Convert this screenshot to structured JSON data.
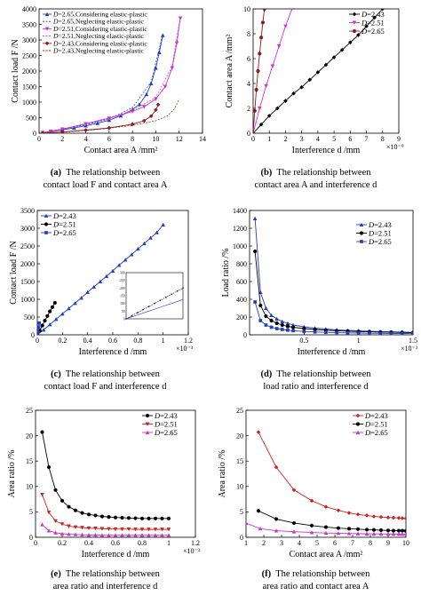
{
  "chart_data": [
    {
      "id": "a",
      "type": "line",
      "caption_tag": "(a)",
      "caption_line1": "The relationship between",
      "caption_line2": "contact load F and contact area A",
      "xlabel": "Contact area A /mm²",
      "ylabel": "Contact load F /N",
      "xlim": [
        0,
        14
      ],
      "ylim": [
        0,
        4000
      ],
      "xticks": [
        0,
        2,
        4,
        6,
        8,
        10,
        12,
        14
      ],
      "yticks": [
        0,
        500,
        1000,
        1500,
        2000,
        2500,
        3000,
        3500,
        4000
      ],
      "x_exponent": "",
      "grid": false,
      "legend_position": "top-left",
      "series": [
        {
          "name": "D=2.65,Considering elastic-plastic",
          "color": "#1f3fbf",
          "marker": "triangle-up",
          "x": [
            0.3,
            1.0,
            2.0,
            3.0,
            4.0,
            5.0,
            6.0,
            7.0,
            8.0,
            8.6,
            9.2,
            9.6,
            10.0,
            10.3,
            10.6
          ],
          "y": [
            15,
            50,
            110,
            170,
            240,
            320,
            420,
            560,
            760,
            930,
            1250,
            1600,
            2100,
            2600,
            3150
          ]
        },
        {
          "name": "D=2.65,Neglecting elastic-plastic",
          "color": "#1f3fbf",
          "marker": "none",
          "x": [
            0.3,
            2.0,
            4.0,
            6.0,
            8.0,
            9.6,
            10.6
          ],
          "y": [
            20,
            130,
            270,
            460,
            820,
            1650,
            3200
          ]
        },
        {
          "name": "D=2.51,Considering elastic-plastic",
          "color": "#cc33cc",
          "marker": "triangle-down",
          "x": [
            0.3,
            1.0,
            2.0,
            4.0,
            6.0,
            8.0,
            9.0,
            10.0,
            10.8,
            11.4,
            11.8,
            12.1
          ],
          "y": [
            20,
            60,
            130,
            300,
            480,
            700,
            850,
            1100,
            1500,
            2100,
            2900,
            3700
          ]
        },
        {
          "name": "D=2.51,Neglecting elastic-plastic",
          "color": "#cc33cc",
          "marker": "none",
          "x": [
            0.3,
            2.0,
            4.0,
            6.0,
            8.0,
            10.0,
            11.4,
            12.1
          ],
          "y": [
            25,
            140,
            310,
            500,
            730,
            1150,
            2150,
            3750
          ]
        },
        {
          "name": "D=2.43,Considering elastic-plastic",
          "color": "#8b1a1a",
          "marker": "diamond",
          "x": [
            0.3,
            2.0,
            4.0,
            6.0,
            8.0,
            9.0,
            9.6,
            10.0,
            10.2
          ],
          "y": [
            5,
            40,
            100,
            170,
            290,
            400,
            550,
            750,
            920
          ]
        },
        {
          "name": "D=2.43,Neglecting elastic-plastic",
          "color": "#8b1a1a",
          "marker": "none",
          "x": [
            2.0,
            5.0,
            8.0,
            10.0,
            11.0,
            11.6,
            12.0
          ],
          "y": [
            30,
            120,
            250,
            400,
            560,
            780,
            1100
          ]
        }
      ]
    },
    {
      "id": "b",
      "type": "line",
      "caption_tag": "(b)",
      "caption_line1": "The relationship between",
      "caption_line2": "contact area A and interference d",
      "xlabel": "Interference d /mm",
      "ylabel": "Contact area A /mm²",
      "xlim": [
        0,
        9
      ],
      "ylim": [
        0,
        10
      ],
      "xticks": [
        0,
        1,
        2,
        3,
        4,
        5,
        6,
        7,
        8,
        9
      ],
      "yticks": [
        0,
        2,
        4,
        6,
        8,
        10
      ],
      "x_exponent": "×10⁻⁹",
      "grid": false,
      "legend_position": "top-left",
      "series": [
        {
          "name": "D=2.43",
          "color": "#000000",
          "marker": "diamond",
          "x": [
            0,
            0.5,
            1,
            1.5,
            2,
            2.5,
            3,
            3.5,
            4,
            4.5,
            5,
            5.5,
            6,
            6.5,
            7,
            7.5,
            8
          ],
          "y": [
            0,
            0.7,
            1.4,
            2.0,
            2.6,
            3.2,
            3.7,
            4.3,
            4.9,
            5.5,
            6.1,
            6.7,
            7.3,
            7.9,
            8.6,
            9.3,
            10
          ]
        },
        {
          "name": "D=2.51",
          "color": "#cc33cc",
          "marker": "triangle-down",
          "x": [
            0,
            0.4,
            0.8,
            1.2,
            1.6,
            2.0,
            2.4
          ],
          "y": [
            0,
            2.0,
            3.8,
            5.4,
            7.0,
            8.6,
            10
          ]
        },
        {
          "name": "D=2.65",
          "color": "#8b1a1a",
          "marker": "circle",
          "x": [
            0,
            0.1,
            0.2,
            0.3,
            0.4,
            0.5,
            0.6,
            0.7
          ],
          "y": [
            0,
            1.8,
            3.5,
            5.0,
            6.4,
            7.7,
            8.9,
            10
          ]
        }
      ]
    },
    {
      "id": "c",
      "type": "line",
      "caption_tag": "(c)",
      "caption_line1": "The relationship between",
      "caption_line2": "contact load F and interference d",
      "xlabel": "Interference d /mm",
      "ylabel": "Contact load F /N",
      "xlim": [
        0,
        1.2
      ],
      "ylim": [
        0,
        3500
      ],
      "xticks": [
        0,
        0.2,
        0.4,
        0.6,
        0.8,
        1,
        1.2
      ],
      "yticks": [
        0,
        500,
        1000,
        1500,
        2000,
        2500,
        3000,
        3500
      ],
      "x_exponent": "×10⁻³",
      "grid": false,
      "legend_position": "top-left",
      "series": [
        {
          "name": "D=2.43",
          "color": "#1f3fbf",
          "marker": "triangle-up",
          "x": [
            0,
            0.05,
            0.1,
            0.15,
            0.2,
            0.25,
            0.3,
            0.35,
            0.4,
            0.45,
            0.5,
            0.55,
            0.6,
            0.65,
            0.7,
            0.75,
            0.8,
            0.85,
            0.9,
            0.95,
            1.0
          ],
          "y": [
            0,
            140,
            290,
            440,
            590,
            740,
            890,
            1040,
            1200,
            1350,
            1500,
            1650,
            1800,
            1960,
            2110,
            2260,
            2420,
            2570,
            2730,
            2880,
            3100
          ]
        },
        {
          "name": "D=2.51",
          "color": "#000000",
          "marker": "circle",
          "x": [
            0,
            0.02,
            0.04,
            0.06,
            0.08,
            0.1,
            0.12,
            0.14
          ],
          "y": [
            0,
            120,
            260,
            400,
            530,
            660,
            780,
            900
          ]
        },
        {
          "name": "D=2.65",
          "color": "#1f3fbf",
          "marker": "square",
          "x": [
            0,
            0.005,
            0.01,
            0.015
          ],
          "y": [
            0,
            100,
            220,
            330
          ]
        }
      ],
      "inset": {
        "xlim": [
          0,
          0.15
        ],
        "ylim": [
          0,
          300
        ],
        "yticks": [
          0,
          50,
          100,
          150,
          200,
          250,
          300
        ],
        "series": [
          {
            "name": "",
            "color": "#000000",
            "marker": "circle",
            "x": [
              0,
              0.015,
              0.03,
              0.045,
              0.06,
              0.075,
              0.09,
              0.105,
              0.12,
              0.135,
              0.15
            ],
            "y": [
              0,
              20,
              40,
              60,
              80,
              100,
              120,
              140,
              160,
              180,
              200
            ]
          },
          {
            "name": "",
            "color": "#1f3fbf",
            "marker": "none",
            "x": [
              0,
              0.03,
              0.06,
              0.09,
              0.12,
              0.15
            ],
            "y": [
              0,
              25,
              50,
              75,
              100,
              125
            ]
          }
        ]
      }
    },
    {
      "id": "d",
      "type": "line",
      "caption_tag": "(d)",
      "caption_line1": "The relationship between",
      "caption_line2": "load ratio and interference d",
      "xlabel": "Interference d /mm",
      "ylabel": "Load ratio /%",
      "xlim": [
        0,
        1.5
      ],
      "ylim": [
        0,
        1400
      ],
      "xticks": [
        0.5,
        1,
        1.5
      ],
      "yticks": [
        0,
        200,
        400,
        600,
        800,
        1000,
        1200,
        1400
      ],
      "x_exponent": "×10⁻³",
      "grid": false,
      "legend_position": "top-right",
      "series": [
        {
          "name": "D=2.43",
          "color": "#1f3fbf",
          "marker": "triangle-up",
          "x": [
            0.05,
            0.1,
            0.15,
            0.2,
            0.25,
            0.3,
            0.35,
            0.4,
            0.5,
            0.6,
            0.7,
            0.8,
            0.9,
            1.0,
            1.1,
            1.2,
            1.3,
            1.4,
            1.5
          ],
          "y": [
            1310,
            480,
            300,
            220,
            180,
            150,
            130,
            110,
            90,
            75,
            65,
            55,
            50,
            45,
            40,
            36,
            33,
            30,
            28
          ]
        },
        {
          "name": "D=2.51",
          "color": "#000000",
          "marker": "circle",
          "x": [
            0.05,
            0.1,
            0.15,
            0.2,
            0.25,
            0.3,
            0.35,
            0.4,
            0.5,
            0.6,
            0.7,
            0.8,
            0.9,
            1.0,
            1.1,
            1.2,
            1.3,
            1.4,
            1.5
          ],
          "y": [
            940,
            330,
            210,
            160,
            130,
            110,
            95,
            85,
            70,
            60,
            52,
            46,
            41,
            37,
            34,
            31,
            29,
            27,
            25
          ]
        },
        {
          "name": "D=2.65",
          "color": "#1f3fbf",
          "marker": "square",
          "x": [
            0.05,
            0.1,
            0.15,
            0.2,
            0.25,
            0.3,
            0.35,
            0.4,
            0.5,
            0.6,
            0.7,
            0.8,
            0.9,
            1.0,
            1.1,
            1.2,
            1.3,
            1.4,
            1.5
          ],
          "y": [
            370,
            160,
            110,
            85,
            70,
            60,
            52,
            46,
            38,
            32,
            28,
            25,
            22,
            20,
            18,
            17,
            16,
            15,
            14
          ]
        }
      ]
    },
    {
      "id": "e",
      "type": "line",
      "caption_tag": "(e)",
      "caption_line1": "The relationship between",
      "caption_line2": "area ratio and interference d",
      "xlabel": "Interference d /mm",
      "ylabel": "Area ratio /%",
      "xlim": [
        0,
        1.2
      ],
      "ylim": [
        0,
        25
      ],
      "xticks": [
        0,
        0.2,
        0.4,
        0.6,
        0.8,
        1,
        1.2
      ],
      "yticks": [
        0,
        5,
        10,
        15,
        20,
        25
      ],
      "x_exponent": "×10⁻³",
      "grid": false,
      "legend_position": "top-right",
      "series": [
        {
          "name": "D=2.43",
          "color": "#000000",
          "marker": "circle",
          "x": [
            0.05,
            0.1,
            0.15,
            0.2,
            0.25,
            0.3,
            0.35,
            0.4,
            0.45,
            0.5,
            0.55,
            0.6,
            0.65,
            0.7,
            0.75,
            0.8,
            0.85,
            0.9,
            0.95,
            1.0
          ],
          "y": [
            20.7,
            13.8,
            9.3,
            7.2,
            6.0,
            5.3,
            4.8,
            4.5,
            4.3,
            4.1,
            4.0,
            3.9,
            3.85,
            3.8,
            3.75,
            3.7,
            3.7,
            3.7,
            3.7,
            3.7
          ]
        },
        {
          "name": "D=2.51",
          "color": "#cc2222",
          "marker": "triangle-down",
          "x": [
            0.05,
            0.1,
            0.15,
            0.2,
            0.25,
            0.3,
            0.35,
            0.4,
            0.45,
            0.5,
            0.55,
            0.6,
            0.65,
            0.7,
            0.75,
            0.8,
            0.85,
            0.9,
            0.95,
            1.0
          ],
          "y": [
            8.4,
            4.9,
            3.2,
            2.6,
            2.2,
            2.0,
            1.9,
            1.8,
            1.75,
            1.7,
            1.65,
            1.6,
            1.6,
            1.6,
            1.55,
            1.55,
            1.55,
            1.55,
            1.55,
            1.55
          ]
        },
        {
          "name": "D=2.65",
          "color": "#cc33cc",
          "marker": "triangle-up",
          "x": [
            0.05,
            0.1,
            0.15,
            0.2,
            0.25,
            0.3,
            0.35,
            0.4,
            0.45,
            0.5,
            0.55,
            0.6,
            0.65,
            0.7,
            0.75,
            0.8,
            0.85,
            0.9,
            0.95,
            1.0
          ],
          "y": [
            2.5,
            1.3,
            0.9,
            0.7,
            0.6,
            0.55,
            0.5,
            0.45,
            0.45,
            0.4,
            0.4,
            0.4,
            0.4,
            0.4,
            0.4,
            0.4,
            0.4,
            0.4,
            0.4,
            0.4
          ]
        }
      ]
    },
    {
      "id": "f",
      "type": "line",
      "caption_tag": "(f)",
      "caption_line1": "The relationship between",
      "caption_line2": "area ratio and contact area A",
      "xlabel": "Contact area A /mm²",
      "ylabel": "Area ratio /%",
      "xlim": [
        1,
        10
      ],
      "ylim": [
        0,
        25
      ],
      "xticks": [
        1,
        2,
        3,
        4,
        5,
        6,
        7,
        8,
        9,
        10
      ],
      "yticks": [
        0,
        5,
        10,
        15,
        20,
        25
      ],
      "x_exponent": "",
      "grid": false,
      "legend_position": "top-right",
      "series": [
        {
          "name": "D=2.43",
          "color": "#cc2222",
          "marker": "diamond",
          "x": [
            1.7,
            2.7,
            3.7,
            4.7,
            5.5,
            6.2,
            6.8,
            7.3,
            7.8,
            8.2,
            8.6,
            9.0,
            9.3,
            9.6,
            9.8,
            10.0
          ],
          "y": [
            20.7,
            13.8,
            9.3,
            7.2,
            6.0,
            5.3,
            4.8,
            4.5,
            4.3,
            4.1,
            4.0,
            3.9,
            3.85,
            3.8,
            3.75,
            3.7
          ]
        },
        {
          "name": "D=2.51",
          "color": "#000000",
          "marker": "circle",
          "x": [
            1.7,
            2.7,
            3.7,
            4.7,
            5.5,
            6.2,
            6.8,
            7.3,
            7.8,
            8.2,
            8.6,
            9.0,
            9.3,
            9.6,
            9.8,
            10.0
          ],
          "y": [
            5.2,
            3.6,
            2.8,
            2.3,
            2.0,
            1.8,
            1.7,
            1.6,
            1.5,
            1.45,
            1.4,
            1.35,
            1.3,
            1.3,
            1.3,
            1.25
          ]
        },
        {
          "name": "D=2.65",
          "color": "#cc33cc",
          "marker": "triangle-up",
          "x": [
            1.0,
            1.8,
            2.7,
            3.7,
            4.7,
            5.5,
            6.2,
            6.8,
            7.3,
            7.8,
            8.2,
            8.6,
            9.0,
            9.3,
            9.6,
            9.8,
            10.0
          ],
          "y": [
            2.8,
            1.7,
            1.3,
            1.1,
            0.95,
            0.85,
            0.8,
            0.75,
            0.72,
            0.7,
            0.68,
            0.66,
            0.65,
            0.64,
            0.63,
            0.62,
            0.62
          ]
        }
      ]
    }
  ]
}
